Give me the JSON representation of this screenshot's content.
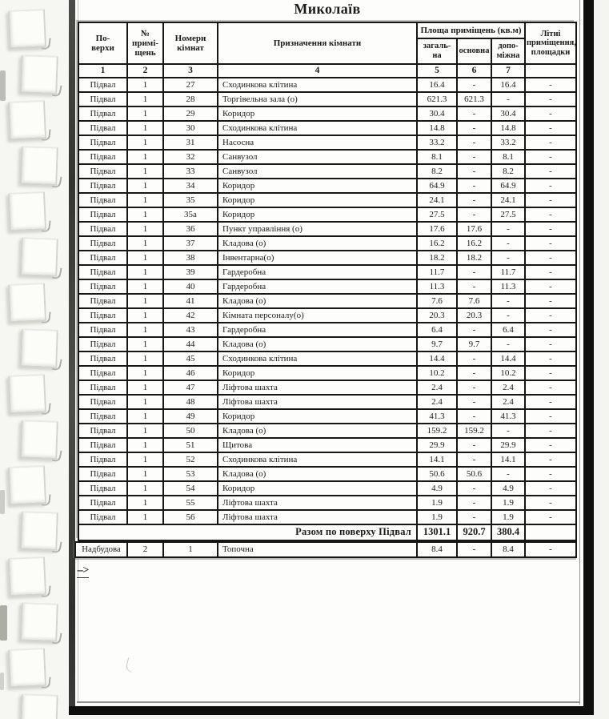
{
  "page": {
    "title": "Миколаїв",
    "continuation_marker": "-->"
  },
  "colors": {
    "ink": "#1b1b1b",
    "paper": "#fdfdfb",
    "frame": "#0e0e0c"
  },
  "table": {
    "headers": {
      "floors": "По-\nверхи",
      "premises_no": "№\nпримі-\nщень",
      "room_numbers": "Номери\nкімнат",
      "room_purpose": "Призначення кімнати",
      "area_group": "Площа приміщень (кв.м)",
      "area_total": "загаль-\nна",
      "area_main": "основна",
      "area_aux": "допо-\nміжна",
      "summer": "Літні\nприміщення,\nплощадки"
    },
    "column_numbers": [
      "1",
      "2",
      "3",
      "4",
      "5",
      "6",
      "7",
      ""
    ],
    "rows": [
      [
        "Підвал",
        "1",
        "27",
        "Сходинкова клітина",
        "16.4",
        "-",
        "16.4",
        "-"
      ],
      [
        "Підвал",
        "1",
        "28",
        "Торгівельна зала (о)",
        "621.3",
        "621.3",
        "-",
        "-"
      ],
      [
        "Підвал",
        "1",
        "29",
        "Коридор",
        "30.4",
        "-",
        "30.4",
        "-"
      ],
      [
        "Підвал",
        "1",
        "30",
        "Сходинкова клітина",
        "14.8",
        "-",
        "14.8",
        "-"
      ],
      [
        "Підвал",
        "1",
        "31",
        "Насосна",
        "33.2",
        "-",
        "33.2",
        "-"
      ],
      [
        "Підвал",
        "1",
        "32",
        "Санвузол",
        "8.1",
        "-",
        "8.1",
        "-"
      ],
      [
        "Підвал",
        "1",
        "33",
        "Санвузол",
        "8.2",
        "-",
        "8.2",
        "-"
      ],
      [
        "Підвал",
        "1",
        "34",
        "Коридор",
        "64.9",
        "-",
        "64.9",
        "-"
      ],
      [
        "Підвал",
        "1",
        "35",
        "Коридор",
        "24.1",
        "-",
        "24.1",
        "-"
      ],
      [
        "Підвал",
        "1",
        "35а",
        "Коридор",
        "27.5",
        "-",
        "27.5",
        "-"
      ],
      [
        "Підвал",
        "1",
        "36",
        "Пункт управління (о)",
        "17.6",
        "17.6",
        "-",
        "-"
      ],
      [
        "Підвал",
        "1",
        "37",
        "Кладова (о)",
        "16.2",
        "16.2",
        "-",
        "-"
      ],
      [
        "Підвал",
        "1",
        "38",
        "Інвентарна(о)",
        "18.2",
        "18.2",
        "-",
        "-"
      ],
      [
        "Підвал",
        "1",
        "39",
        "Гардеробна",
        "11.7",
        "-",
        "11.7",
        "-"
      ],
      [
        "Підвал",
        "1",
        "40",
        "Гардеробна",
        "11.3",
        "-",
        "11.3",
        "-"
      ],
      [
        "Підвал",
        "1",
        "41",
        "Кладова (о)",
        "7.6",
        "7.6",
        "-",
        "-"
      ],
      [
        "Підвал",
        "1",
        "42",
        "Кімната персоналу(о)",
        "20.3",
        "20.3",
        "-",
        "-"
      ],
      [
        "Підвал",
        "1",
        "43",
        "Гардеробна",
        "6.4",
        "-",
        "6.4",
        "-"
      ],
      [
        "Підвал",
        "1",
        "44",
        "Кладова (о)",
        "9.7",
        "9.7",
        "-",
        "-"
      ],
      [
        "Підвал",
        "1",
        "45",
        "Сходинкова клітина",
        "14.4",
        "-",
        "14.4",
        "-"
      ],
      [
        "Підвал",
        "1",
        "46",
        "Коридор",
        "10.2",
        "-",
        "10.2",
        "-"
      ],
      [
        "Підвал",
        "1",
        "47",
        "Ліфтова шахта",
        "2.4",
        "-",
        "2.4",
        "-"
      ],
      [
        "Підвал",
        "1",
        "48",
        "Ліфтова шахта",
        "2.4",
        "-",
        "2.4",
        "-"
      ],
      [
        "Підвал",
        "1",
        "49",
        "Коридор",
        "41.3",
        "-",
        "41.3",
        "-"
      ],
      [
        "Підвал",
        "1",
        "50",
        "Кладова (о)",
        "159.2",
        "159.2",
        "-",
        "-"
      ],
      [
        "Підвал",
        "1",
        "51",
        "Щитова",
        "29.9",
        "-",
        "29.9",
        "-"
      ],
      [
        "Підвал",
        "1",
        "52",
        "Сходинкова клітина",
        "14.1",
        "-",
        "14.1",
        "-"
      ],
      [
        "Підвал",
        "1",
        "53",
        "Кладова (о)",
        "50.6",
        "50.6",
        "-",
        "-"
      ],
      [
        "Підвал",
        "1",
        "54",
        "Коридор",
        "4.9",
        "-",
        "4.9",
        "-"
      ],
      [
        "Підвал",
        "1",
        "55",
        "Ліфтова шахта",
        "1.9",
        "-",
        "1.9",
        "-"
      ],
      [
        "Підвал",
        "1",
        "56",
        "Ліфтова шахта",
        "1.9",
        "-",
        "1.9",
        "-"
      ]
    ],
    "total_row": {
      "label": "Разом по поверху Підвал",
      "area_total": "1301.1",
      "area_main": "920.7",
      "area_aux": "380.4",
      "summer": ""
    },
    "annex_row": [
      "Надбудова",
      "2",
      "1",
      "Топочна",
      "8.4",
      "-",
      "8.4",
      "-"
    ]
  }
}
